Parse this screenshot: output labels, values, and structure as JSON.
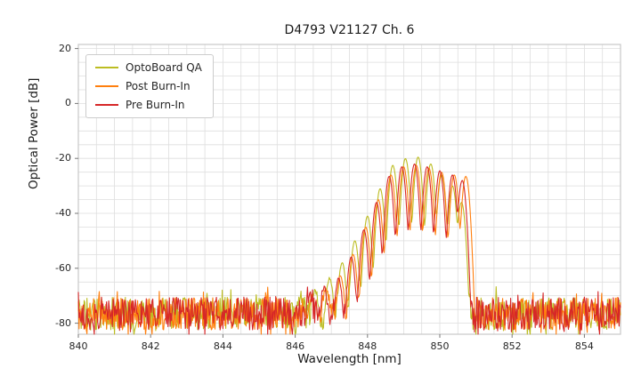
{
  "title": "D4793 V21127 Ch. 6",
  "xlabel": "Wavelength [nm]",
  "ylabel": "Optical Power [dB]",
  "legend": {
    "items": [
      {
        "label": "OptoBoard QA",
        "color": "#bcbd22"
      },
      {
        "label": "Post Burn-In",
        "color": "#ff7f0e"
      },
      {
        "label": "Pre Burn-In",
        "color": "#d62728"
      }
    ]
  },
  "chart_data": {
    "type": "line",
    "title": "D4793 V21127 Ch. 6",
    "xlabel": "Wavelength [nm]",
    "ylabel": "Optical Power [dB]",
    "xlim": [
      840,
      855
    ],
    "ylim": [
      -84,
      21.5
    ],
    "x_ticks": [
      840,
      842,
      844,
      846,
      848,
      850,
      852,
      854
    ],
    "y_ticks": [
      20,
      0,
      -20,
      -40,
      -60,
      -80
    ],
    "grid": {
      "x_step": 0.5,
      "y_step": 5,
      "color": "#dedede",
      "on": true
    },
    "frame_color": "#c8c8c8",
    "mode_sigma_nm": 0.05,
    "noise": {
      "mean_db": -76.5,
      "range_db": 12,
      "seed": 42
    },
    "series": [
      {
        "name": "OptoBoard QA",
        "color": "#bcbd22",
        "modes": [
          [
            846.15,
            -72
          ],
          [
            846.55,
            -69
          ],
          [
            846.95,
            -64
          ],
          [
            847.3,
            -58
          ],
          [
            847.65,
            -50
          ],
          [
            848.0,
            -41
          ],
          [
            848.35,
            -31
          ],
          [
            848.7,
            -22.5
          ],
          [
            849.05,
            -20
          ],
          [
            849.4,
            -19.5
          ],
          [
            849.75,
            -22
          ],
          [
            850.05,
            -26
          ],
          [
            850.35,
            -30
          ],
          [
            850.6,
            -36
          ]
        ]
      },
      {
        "name": "Post Burn-In",
        "color": "#ff7f0e",
        "modes": [
          [
            846.45,
            -72
          ],
          [
            846.85,
            -68
          ],
          [
            847.25,
            -63
          ],
          [
            847.6,
            -55
          ],
          [
            847.95,
            -45
          ],
          [
            848.3,
            -35
          ],
          [
            848.65,
            -26
          ],
          [
            849.0,
            -23
          ],
          [
            849.35,
            -22.5
          ],
          [
            849.7,
            -23.5
          ],
          [
            850.05,
            -25
          ],
          [
            850.4,
            -26
          ],
          [
            850.72,
            -26.5
          ]
        ]
      },
      {
        "name": "Pre Burn-In",
        "color": "#d62728",
        "modes": [
          [
            846.4,
            -72
          ],
          [
            846.8,
            -68
          ],
          [
            847.2,
            -64
          ],
          [
            847.55,
            -56
          ],
          [
            847.9,
            -46
          ],
          [
            848.25,
            -36
          ],
          [
            848.6,
            -26.5
          ],
          [
            848.95,
            -23
          ],
          [
            849.3,
            -22
          ],
          [
            849.65,
            -23
          ],
          [
            850.0,
            -24.5
          ],
          [
            850.35,
            -26
          ],
          [
            850.62,
            -28
          ]
        ]
      }
    ]
  }
}
